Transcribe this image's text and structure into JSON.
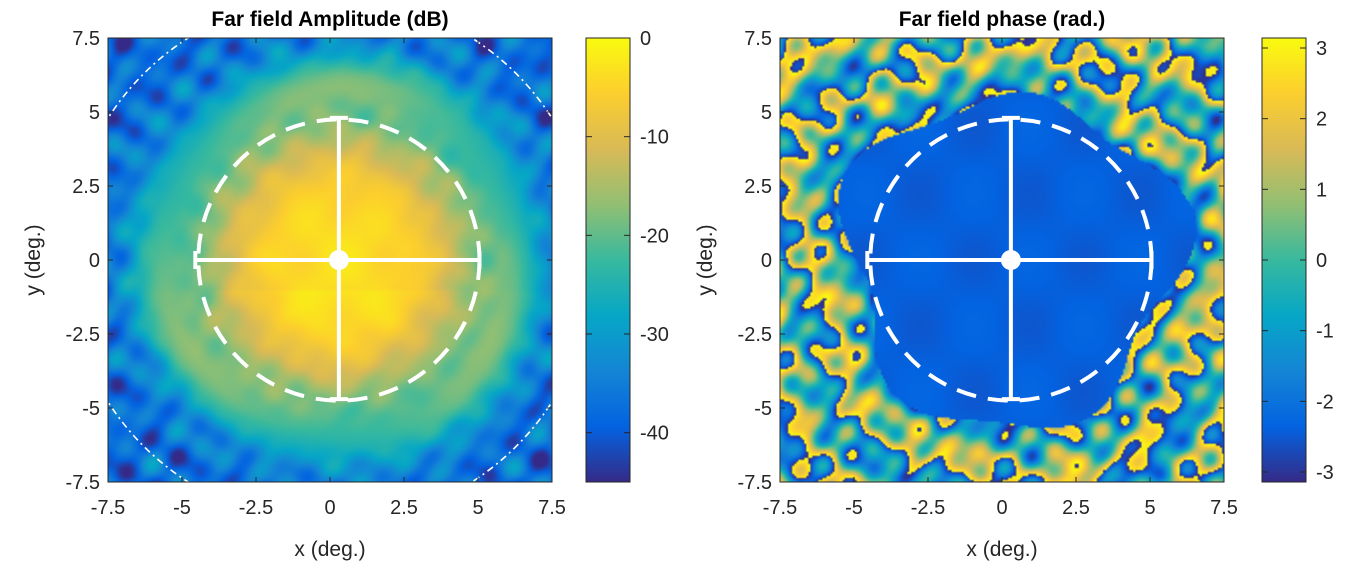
{
  "colors": {
    "colormap": "parula",
    "overlay": "#ffffff",
    "axis": "#262626"
  },
  "chart_data": [
    {
      "type": "heatmap",
      "title": "Far field Amplitude (dB)",
      "xlabel": "x (deg.)",
      "ylabel": "y (deg.)",
      "xlim": [
        -7.5,
        7.5
      ],
      "ylim": [
        -7.5,
        7.5
      ],
      "xticks": [
        "-7.5",
        "-5",
        "-2.5",
        "0",
        "2.5",
        "5",
        "7.5"
      ],
      "yticks": [
        "7.5",
        "5",
        "2.5",
        "0",
        "-2.5",
        "-5",
        "-7.5"
      ],
      "xtick_values": [
        -7.5,
        -5,
        -2.5,
        0,
        2.5,
        5,
        7.5
      ],
      "ytick_values": [
        7.5,
        5,
        2.5,
        0,
        -2.5,
        -5,
        -7.5
      ],
      "colorbar": {
        "range": [
          -45,
          0
        ],
        "tick_values": [
          0,
          -10,
          -20,
          -30,
          -40
        ],
        "ticks": [
          "0",
          "-10",
          "-20",
          "-30",
          "-40"
        ]
      },
      "field": {
        "kind": "amplitude",
        "beam_center": [
          0.3,
          0
        ],
        "beam_radius_deg": 4.8,
        "floor_db": -45,
        "peak_db": -3
      },
      "overlay": {
        "dashed_circle": {
          "center": [
            0.3,
            0
          ],
          "radius_deg": 4.75
        },
        "crosshair": {
          "center": [
            0.3,
            0
          ],
          "x_extent": [
            -4.55,
            5.05
          ],
          "y_extent": [
            -4.7,
            4.8
          ]
        },
        "dash_dot_circle": {
          "center": [
            0,
            0
          ],
          "radius_deg": 8.9
        }
      }
    },
    {
      "type": "heatmap",
      "title": "Far field phase (rad.)",
      "xlabel": "x (deg.)",
      "ylabel": "y (deg.)",
      "xlim": [
        -7.5,
        7.5
      ],
      "ylim": [
        -7.5,
        7.5
      ],
      "xticks": [
        "-7.5",
        "-5",
        "-2.5",
        "0",
        "2.5",
        "5",
        "7.5"
      ],
      "yticks": [
        "7.5",
        "5",
        "2.5",
        "0",
        "-2.5",
        "-5",
        "-7.5"
      ],
      "xtick_values": [
        -7.5,
        -5,
        -2.5,
        0,
        2.5,
        5,
        7.5
      ],
      "ytick_values": [
        7.5,
        5,
        2.5,
        0,
        -2.5,
        -5,
        -7.5
      ],
      "colorbar": {
        "range": [
          -3.1416,
          3.1416
        ],
        "tick_values": [
          3,
          2,
          1,
          0,
          -1,
          -2,
          -3
        ],
        "ticks": [
          "3",
          "2",
          "1",
          "0",
          "-1",
          "-2",
          "-3"
        ]
      },
      "field": {
        "kind": "phase",
        "beam_center": [
          0.3,
          0
        ],
        "beam_radius_deg": 5.6,
        "inner_phase_rad": -2.4
      },
      "overlay": {
        "dashed_circle": {
          "center": [
            0.3,
            0
          ],
          "radius_deg": 4.75
        },
        "crosshair": {
          "center": [
            0.3,
            0
          ],
          "x_extent": [
            -4.55,
            5.05
          ],
          "y_extent": [
            -4.7,
            4.8
          ]
        }
      }
    }
  ]
}
